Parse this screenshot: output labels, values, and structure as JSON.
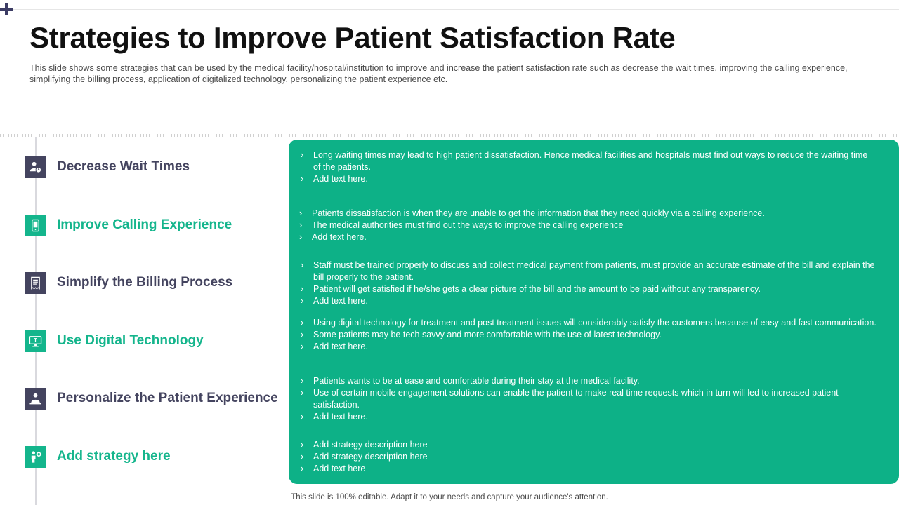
{
  "title": "Strategies to Improve Patient Satisfaction Rate",
  "subtitle": "This slide shows some strategies that can be used by the medical facility/hospital/institution to improve and increase the patient satisfaction rate such as decrease the wait times, improving the calling experience, simplifying the billing process, application of digitalized technology, personalizing the patient experience etc.",
  "strategies": [
    {
      "label": "Decrease Wait Times",
      "icon": "people-clock-icon",
      "color": "#44445f"
    },
    {
      "label": "Improve Calling Experience",
      "icon": "mobile-phone-icon",
      "color": "#14b58c"
    },
    {
      "label": "Simplify the Billing Process",
      "icon": "bill-receipt-icon",
      "color": "#44445f"
    },
    {
      "label": "Use Digital Technology",
      "icon": "monitor-icon",
      "color": "#14b58c"
    },
    {
      "label": "Personalize the Patient Experience",
      "icon": "patient-care-icon",
      "color": "#44445f"
    },
    {
      "label": "Add strategy here",
      "icon": "person-gear-icon",
      "color": "#14b58c"
    }
  ],
  "descriptions": [
    [
      "Long waiting times may lead to high patient dissatisfaction.  Hence medical facilities and hospitals must find out ways to reduce the waiting time of the patients.",
      "Add text here."
    ],
    [
      "Patients dissatisfaction is when they are unable to get the information that they need quickly via a calling experience.",
      "The medical authorities must find out the ways to improve the calling experience",
      "Add text here."
    ],
    [
      "Staff must be trained properly to discuss and collect medical payment from patients, must provide an accurate estimate of the bill and explain the bill properly to the patient.",
      "Patient will get satisfied if he/she gets a clear picture of the bill and the amount to be paid without any transparency.",
      "Add text here."
    ],
    [
      "Using digital technology for treatment and post treatment issues will considerably satisfy the customers because of easy and fast communication.",
      "Some patients may be tech savvy and more comfortable with the use of latest technology.",
      "Add text here."
    ],
    [
      "Patients wants to be at ease and comfortable during their stay at the medical facility.",
      "Use of certain mobile engagement solutions can enable the patient to make real time requests which in turn will led to increased patient satisfaction.",
      "Add text here."
    ],
    [
      "Add strategy description here",
      "Add strategy description here",
      "Add text here"
    ]
  ],
  "footer": "This slide is 100% editable. Adapt it to your needs and capture your audience's attention.",
  "colors": {
    "accent": "#0db187",
    "dark": "#44445f",
    "green_text": "#14b58c"
  }
}
